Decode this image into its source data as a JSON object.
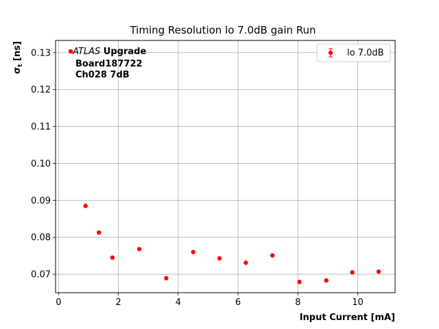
{
  "chart_data": {
    "type": "scatter",
    "title": "Timing Resolution lo 7.0dB gain Run",
    "xlabel": "Input Current [mA]",
    "ylabel": "σ",
    "ylabel_sub": "t",
    "ylabel_unit": " [ns]",
    "xlim": [
      -0.1,
      11.25
    ],
    "ylim": [
      0.065,
      0.1333
    ],
    "x_ticks": [
      0,
      2,
      4,
      6,
      8,
      10
    ],
    "x_tick_labels": [
      "0",
      "2",
      "4",
      "6",
      "8",
      "10"
    ],
    "y_ticks": [
      0.07,
      0.08,
      0.09,
      0.1,
      0.11,
      0.12,
      0.13
    ],
    "y_tick_labels": [
      "0.07",
      "0.08",
      "0.09",
      "0.10",
      "0.11",
      "0.12",
      "0.13"
    ],
    "grid": true,
    "legend_position": "top-right",
    "series": [
      {
        "name": "lo 7.0dB",
        "color": "#ff0000",
        "x": [
          0.9,
          1.35,
          1.8,
          2.7,
          3.6,
          4.5,
          5.38,
          6.26,
          7.15,
          8.05,
          8.95,
          9.82,
          10.7
        ],
        "y": [
          0.0885,
          0.0813,
          0.0745,
          0.0768,
          0.0689,
          0.076,
          0.0743,
          0.0731,
          0.0751,
          0.0679,
          0.0683,
          0.0705,
          0.0707
        ]
      }
    ],
    "annotation": {
      "line1_italic": "ATLAS",
      "line1_bold": " Upgrade",
      "line2": "Board187722",
      "line3": "Ch028 7dB"
    }
  }
}
